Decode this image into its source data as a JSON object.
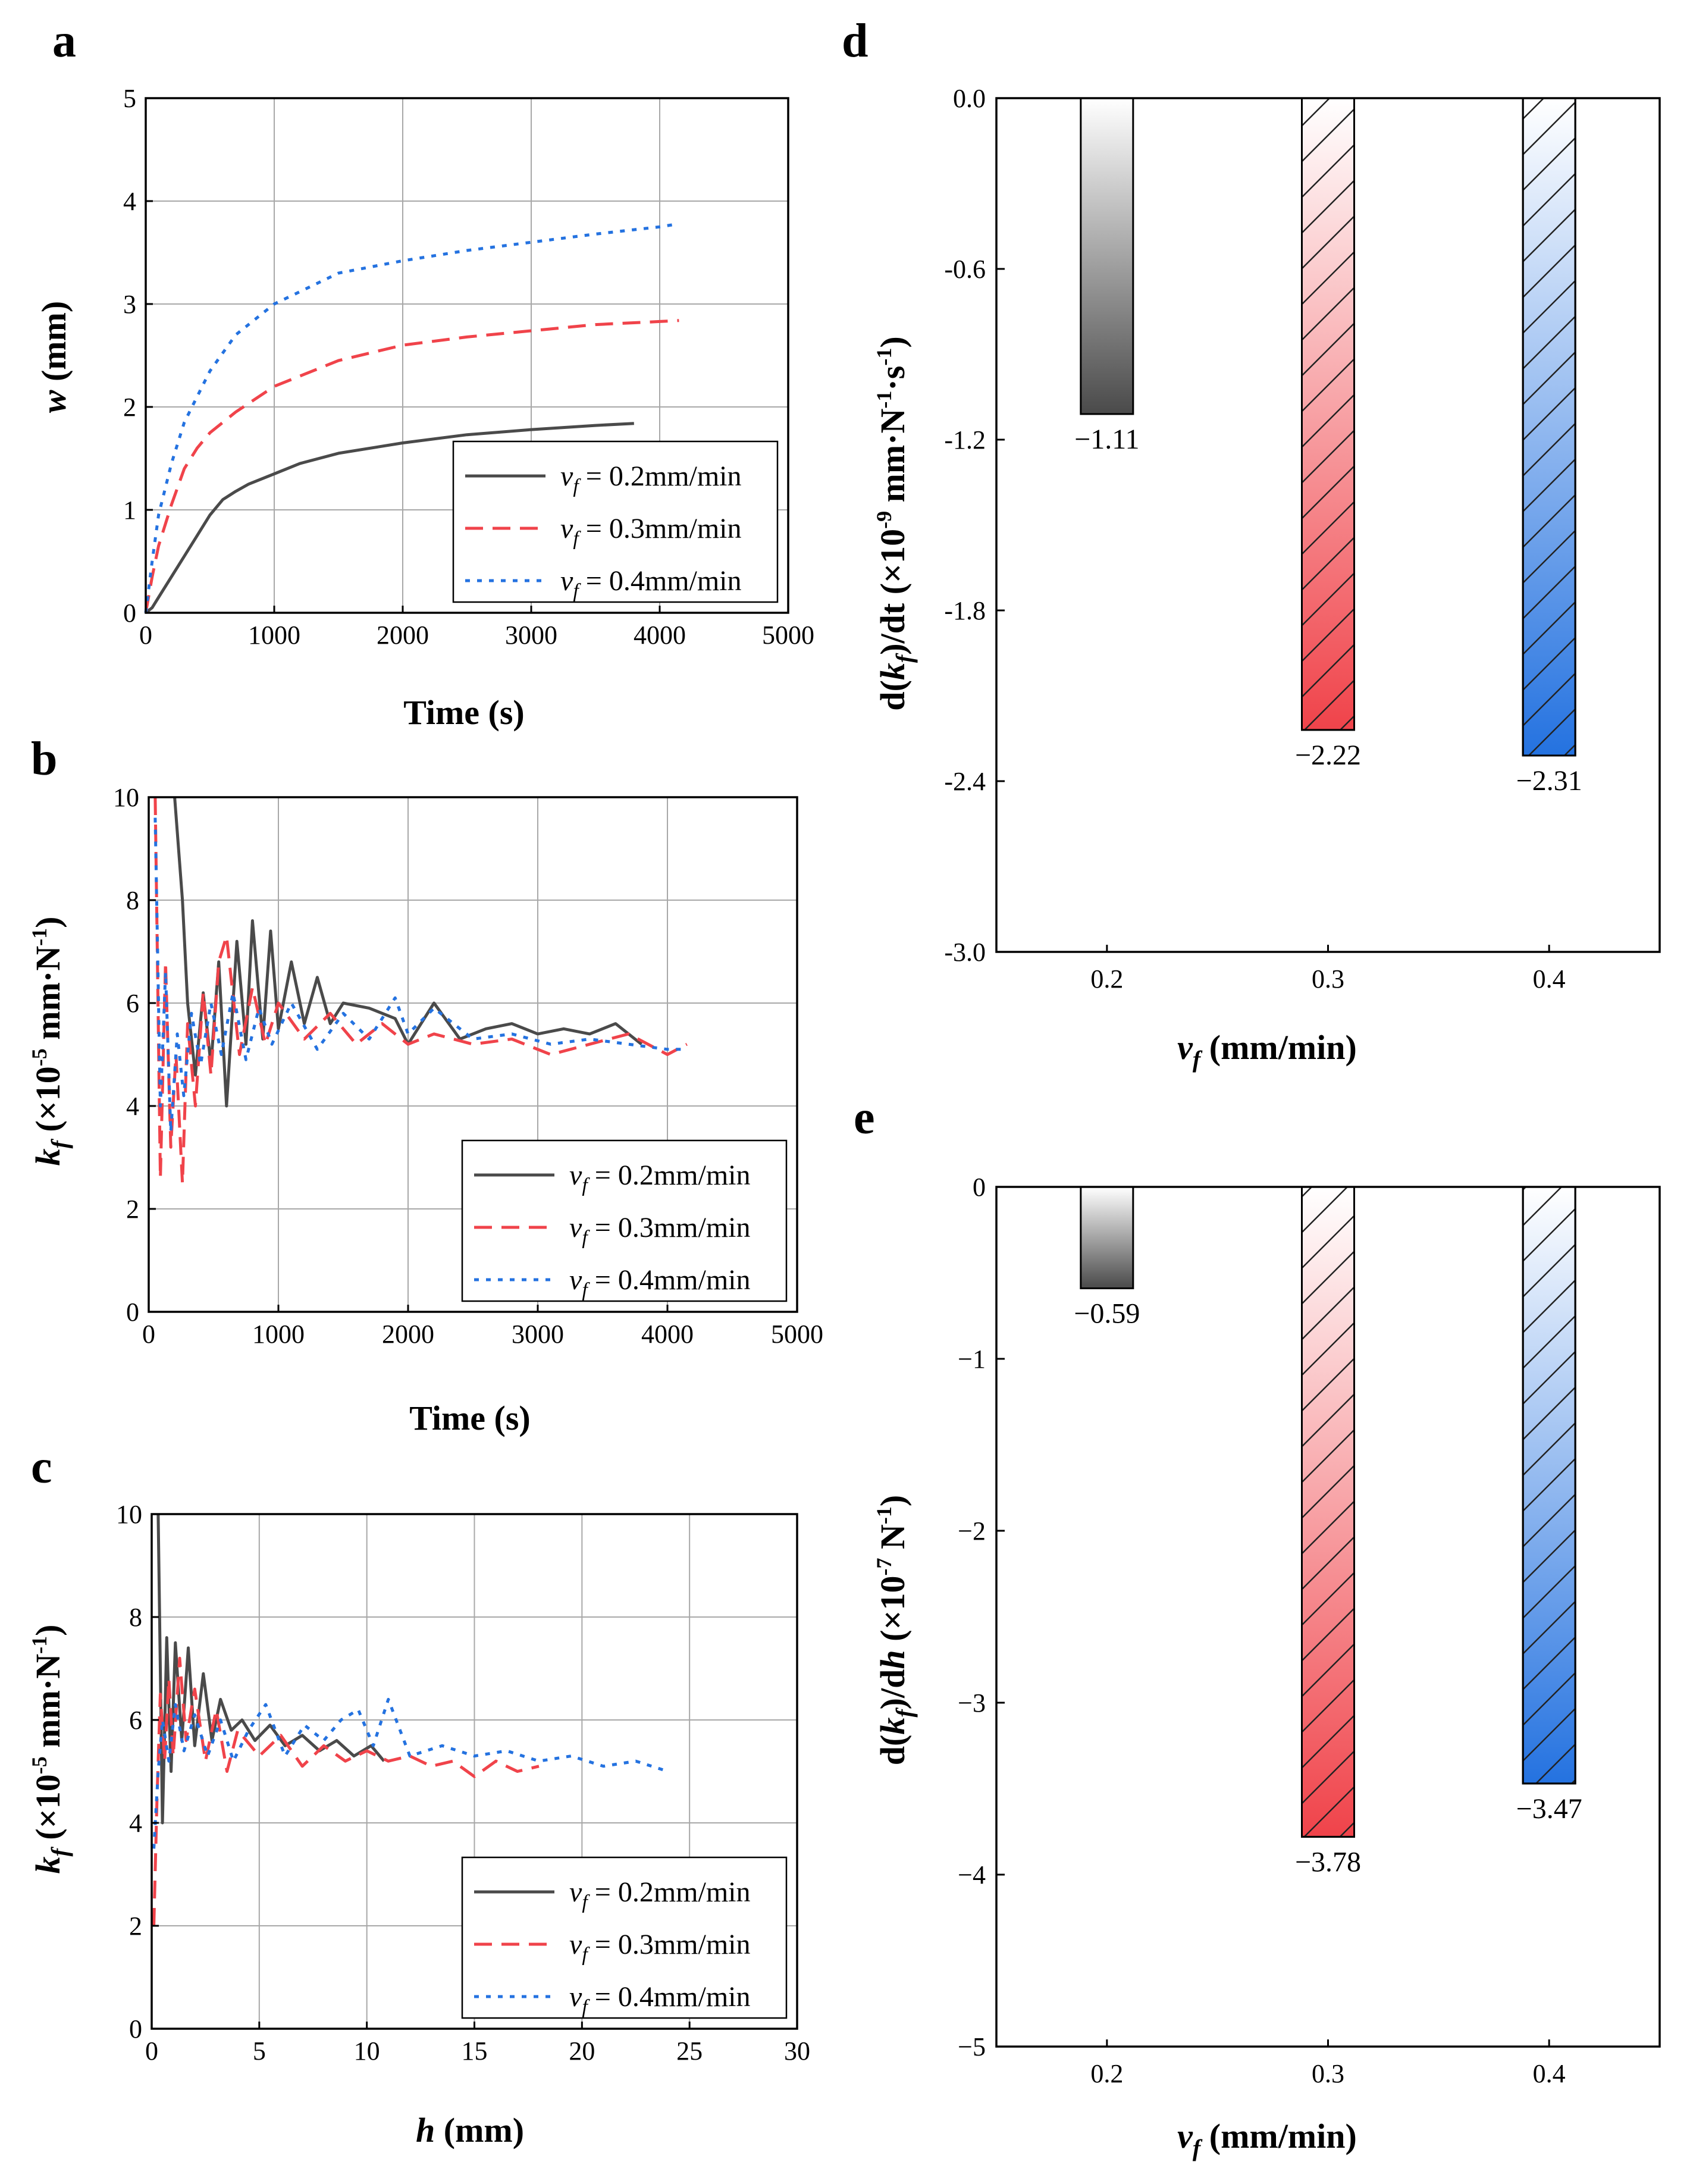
{
  "colors": {
    "black": "#4a4a4a",
    "red": "#f0434a",
    "blue": "#2472e0",
    "grid": "#a8a8a8"
  },
  "chart_data": [
    {
      "id": "a",
      "panel_label": "a",
      "type": "line",
      "xlabel": "Time (s)",
      "ylabel_main": "w",
      "ylabel_unit": "(mm)",
      "xlim": [
        0,
        5000
      ],
      "ylim": [
        0,
        5
      ],
      "xticks": [
        "0",
        "1000",
        "2000",
        "3000",
        "4000",
        "5000"
      ],
      "yticks": [
        "0",
        "1",
        "2",
        "3",
        "4",
        "5"
      ],
      "legend_position": "bottom-right",
      "series": [
        {
          "name": "v_f = 0.2mm/min",
          "legend_var": "v",
          "legend_sub": "f",
          "legend_rest": " = 0.2mm/min",
          "color": "#4a4a4a",
          "style": "solid",
          "x": [
            0,
            50,
            100,
            200,
            300,
            400,
            500,
            600,
            700,
            800,
            1000,
            1200,
            1500,
            2000,
            2500,
            3000,
            3500,
            3800
          ],
          "y": [
            0,
            0.05,
            0.15,
            0.35,
            0.55,
            0.75,
            0.95,
            1.1,
            1.18,
            1.25,
            1.35,
            1.45,
            1.55,
            1.65,
            1.73,
            1.78,
            1.82,
            1.84
          ]
        },
        {
          "name": "v_f = 0.3mm/min",
          "legend_var": "v",
          "legend_sub": "f",
          "legend_rest": " = 0.3mm/min",
          "color": "#f0434a",
          "style": "dashed",
          "x": [
            0,
            50,
            100,
            200,
            300,
            400,
            500,
            700,
            1000,
            1500,
            2000,
            2500,
            3000,
            3500,
            4000,
            4150
          ],
          "y": [
            0,
            0.35,
            0.65,
            1.05,
            1.4,
            1.6,
            1.75,
            1.95,
            2.2,
            2.45,
            2.6,
            2.68,
            2.74,
            2.8,
            2.83,
            2.84
          ]
        },
        {
          "name": "v_f = 0.4mm/min",
          "legend_var": "v",
          "legend_sub": "f",
          "legend_rest": " = 0.4mm/min",
          "color": "#2472e0",
          "style": "dotted",
          "x": [
            0,
            50,
            100,
            200,
            300,
            400,
            500,
            700,
            1000,
            1500,
            2000,
            2500,
            3000,
            3500,
            4000,
            4150
          ],
          "y": [
            0,
            0.5,
            0.95,
            1.45,
            1.85,
            2.1,
            2.35,
            2.7,
            3.0,
            3.3,
            3.42,
            3.52,
            3.6,
            3.68,
            3.75,
            3.78
          ]
        }
      ]
    },
    {
      "id": "b",
      "panel_label": "b",
      "type": "line",
      "xlabel": "Time (s)",
      "ylabel_main": "k",
      "ylabel_sub": "f",
      "ylabel_unit": " (×10",
      "ylabel_exp": "-5",
      "ylabel_unit2": " mm·N",
      "ylabel_exp2": "-1",
      "ylabel_close": ")",
      "xlim": [
        0,
        5000
      ],
      "ylim": [
        0,
        10
      ],
      "xticks": [
        "0",
        "1000",
        "2000",
        "3000",
        "4000",
        "5000"
      ],
      "yticks": [
        "0",
        "2",
        "4",
        "6",
        "8",
        "10"
      ],
      "legend_position": "bottom-right",
      "series": [
        {
          "name": "v_f = 0.2mm/min",
          "legend_var": "v",
          "legend_sub": "f",
          "legend_rest": " = 0.2mm/min",
          "color": "#4a4a4a",
          "style": "solid",
          "x": [
            200,
            260,
            300,
            360,
            420,
            480,
            540,
            600,
            680,
            750,
            800,
            880,
            940,
            1000,
            1100,
            1200,
            1300,
            1400,
            1500,
            1700,
            1900,
            2000,
            2200,
            2400,
            2600,
            2800,
            3000,
            3200,
            3400,
            3600,
            3800
          ],
          "y": [
            10,
            8.0,
            6.0,
            4.6,
            6.2,
            4.8,
            6.8,
            4.0,
            7.2,
            5.2,
            7.6,
            5.3,
            7.4,
            5.5,
            6.8,
            5.6,
            6.5,
            5.6,
            6.0,
            5.9,
            5.7,
            5.2,
            6.0,
            5.3,
            5.5,
            5.6,
            5.4,
            5.5,
            5.4,
            5.6,
            5.2
          ]
        },
        {
          "name": "v_f = 0.3mm/min",
          "legend_var": "v",
          "legend_sub": "f",
          "legend_rest": " = 0.3mm/min",
          "color": "#f0434a",
          "style": "dashed",
          "x": [
            50,
            90,
            130,
            170,
            210,
            260,
            300,
            360,
            420,
            480,
            540,
            600,
            700,
            800,
            900,
            1000,
            1200,
            1400,
            1600,
            1800,
            2000,
            2200,
            2500,
            2800,
            3100,
            3400,
            3700,
            4000,
            4150
          ],
          "y": [
            10,
            2.6,
            6.8,
            3.2,
            5.0,
            2.5,
            5.6,
            4.0,
            6.2,
            4.6,
            6.8,
            7.3,
            5.0,
            6.3,
            5.2,
            6.0,
            5.3,
            5.8,
            5.2,
            5.6,
            5.2,
            5.4,
            5.2,
            5.3,
            5.0,
            5.2,
            5.4,
            5.0,
            5.2
          ]
        },
        {
          "name": "v_f = 0.4mm/min",
          "legend_var": "v",
          "legend_sub": "f",
          "legend_rest": " = 0.4mm/min",
          "color": "#2472e0",
          "style": "dotted",
          "x": [
            50,
            90,
            130,
            170,
            220,
            270,
            330,
            400,
            480,
            560,
            650,
            750,
            850,
            950,
            1100,
            1300,
            1500,
            1700,
            1900,
            2000,
            2200,
            2500,
            2800,
            3100,
            3400,
            3700,
            4000,
            4150
          ],
          "y": [
            9.6,
            4.0,
            6.6,
            3.5,
            5.4,
            4.2,
            5.8,
            4.8,
            6.0,
            5.0,
            6.2,
            4.9,
            5.9,
            5.2,
            6.0,
            5.1,
            5.8,
            5.3,
            6.1,
            5.4,
            5.9,
            5.3,
            5.4,
            5.2,
            5.3,
            5.2,
            5.1,
            5.1
          ]
        }
      ]
    },
    {
      "id": "c",
      "panel_label": "c",
      "type": "line",
      "xlabel_main": "h",
      "xlabel_unit": " (mm)",
      "ylabel_main": "k",
      "ylabel_sub": "f",
      "ylabel_unit": " (×10",
      "ylabel_exp": "-5",
      "ylabel_unit2": " mm·N",
      "ylabel_exp2": "-1",
      "ylabel_close": ")",
      "xlim": [
        0,
        30
      ],
      "ylim": [
        0,
        10
      ],
      "xticks": [
        "0",
        "5",
        "10",
        "15",
        "20",
        "25",
        "30"
      ],
      "yticks": [
        "0",
        "2",
        "4",
        "6",
        "8",
        "10"
      ],
      "legend_position": "bottom-right",
      "series": [
        {
          "name": "v_f = 0.2mm/min",
          "legend_var": "v",
          "legend_sub": "f",
          "legend_rest": " = 0.2mm/min",
          "color": "#4a4a4a",
          "style": "solid",
          "x": [
            0.3,
            0.5,
            0.7,
            0.9,
            1.1,
            1.4,
            1.7,
            2.0,
            2.4,
            2.8,
            3.2,
            3.7,
            4.2,
            4.8,
            5.5,
            6.2,
            7.0,
            7.8,
            8.6,
            9.4,
            10.2,
            10.8
          ],
          "y": [
            10,
            4.0,
            7.6,
            5.0,
            7.5,
            5.6,
            7.4,
            5.5,
            6.9,
            5.6,
            6.4,
            5.8,
            6.0,
            5.6,
            5.9,
            5.5,
            5.7,
            5.4,
            5.6,
            5.3,
            5.5,
            5.2
          ]
        },
        {
          "name": "v_f = 0.3mm/min",
          "legend_var": "v",
          "legend_sub": "f",
          "legend_rest": " = 0.3mm/min",
          "color": "#f0434a",
          "style": "dashed",
          "x": [
            0.1,
            0.25,
            0.4,
            0.6,
            0.8,
            1.0,
            1.3,
            1.6,
            2.0,
            2.5,
            3.0,
            3.5,
            4.0,
            5.0,
            6.0,
            7.0,
            8.0,
            9.0,
            10.0,
            11.0,
            12.0,
            13.0,
            14.0,
            15.0,
            16.0,
            17.0,
            18.0
          ],
          "y": [
            2.0,
            4.5,
            6.5,
            5.2,
            6.8,
            5.3,
            7.2,
            5.6,
            6.6,
            5.2,
            6.2,
            5.0,
            5.8,
            5.3,
            5.7,
            5.1,
            5.5,
            5.2,
            5.4,
            5.2,
            5.3,
            5.1,
            5.2,
            4.9,
            5.2,
            5.0,
            5.1
          ]
        },
        {
          "name": "v_f = 0.4mm/min",
          "legend_var": "v",
          "legend_sub": "f",
          "legend_rest": " = 0.4mm/min",
          "color": "#2472e0",
          "style": "dotted",
          "x": [
            0.1,
            0.3,
            0.5,
            0.8,
            1.1,
            1.5,
            2.0,
            2.6,
            3.2,
            3.8,
            4.5,
            5.3,
            6.2,
            7.1,
            8.0,
            8.8,
            9.6,
            10.3,
            11.0,
            12.0,
            13.5,
            15.0,
            16.5,
            18.0,
            19.5,
            21.0,
            22.5,
            24.0
          ],
          "y": [
            3.5,
            5.0,
            6.0,
            5.2,
            6.3,
            5.4,
            6.1,
            5.3,
            6.0,
            5.2,
            5.8,
            6.3,
            5.3,
            5.9,
            5.6,
            6.0,
            6.2,
            5.5,
            6.4,
            5.3,
            5.5,
            5.3,
            5.4,
            5.2,
            5.3,
            5.1,
            5.2,
            5.0
          ]
        }
      ]
    },
    {
      "id": "d",
      "panel_label": "d",
      "type": "bar",
      "xlabel_main": "v",
      "xlabel_sub": "f",
      "xlabel_unit": " (mm/min)",
      "ylabel_pre": "d(",
      "ylabel_main": "k",
      "ylabel_sub": "f",
      "ylabel_mid": ")/dt (×10",
      "ylabel_exp": "-9",
      "ylabel_unit": " mm·N",
      "ylabel_exp2": "-1",
      "ylabel_unit2": "·s",
      "ylabel_exp3": "-1",
      "ylabel_close": ")",
      "categories": [
        "0.2",
        "0.3",
        "0.4"
      ],
      "values": [
        -1.11,
        -2.22,
        -2.31
      ],
      "value_labels": [
        "−1.11",
        "−2.22",
        "−2.31"
      ],
      "ylim": [
        -3.0,
        0.0
      ],
      "yticks": [
        "0.0",
        "-0.6",
        "-1.2",
        "-1.8",
        "-2.4",
        "-3.0"
      ],
      "bar_colors": [
        "#4a4a4a",
        "#f0434a",
        "#2472e0"
      ],
      "hatched": [
        false,
        true,
        true
      ]
    },
    {
      "id": "e",
      "panel_label": "e",
      "type": "bar",
      "xlabel_main": "v",
      "xlabel_sub": "f",
      "xlabel_unit": " (mm/min)",
      "ylabel_pre": "d(",
      "ylabel_main": "k",
      "ylabel_sub": "f",
      "ylabel_mid": ")/d",
      "ylabel_h": "h",
      "ylabel_mid2": " (×10",
      "ylabel_exp": "-7",
      "ylabel_unit": " N",
      "ylabel_exp2": "-1",
      "ylabel_close": ")",
      "categories": [
        "0.2",
        "0.3",
        "0.4"
      ],
      "values": [
        -0.59,
        -3.78,
        -3.47
      ],
      "value_labels": [
        "−0.59",
        "−3.78",
        "−3.47"
      ],
      "ylim": [
        -5,
        0
      ],
      "yticks": [
        "0",
        "−1",
        "−2",
        "−3",
        "−4",
        "−5"
      ],
      "bar_colors": [
        "#4a4a4a",
        "#f0434a",
        "#2472e0"
      ],
      "hatched": [
        false,
        true,
        true
      ]
    }
  ]
}
